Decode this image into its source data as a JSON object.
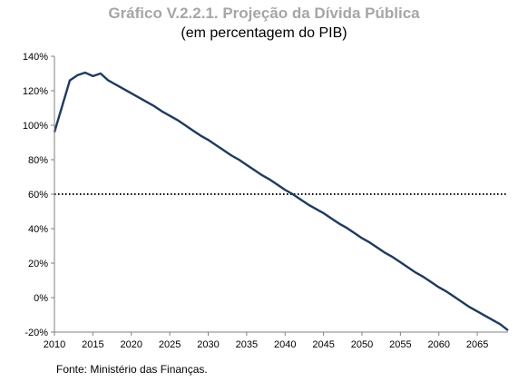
{
  "title": "Gráfico V.2.2.1. Projeção da Dívida Pública",
  "subtitle": "(em percentagem do PIB)",
  "source": "Fonte: Ministério das Finanças.",
  "chart_data": {
    "type": "line",
    "xlim": [
      2010,
      2069
    ],
    "ylim": [
      -20,
      140
    ],
    "yticks": [
      -20,
      0,
      20,
      40,
      60,
      80,
      100,
      120,
      140
    ],
    "ytick_labels": [
      "-20%",
      "0%",
      "20%",
      "40%",
      "60%",
      "80%",
      "100%",
      "120%",
      "140%"
    ],
    "xticks": [
      2010,
      2015,
      2020,
      2025,
      2030,
      2035,
      2040,
      2045,
      2050,
      2055,
      2060,
      2065
    ],
    "xtick_labels": [
      "2010",
      "2015",
      "2020",
      "2025",
      "2030",
      "2035",
      "2040",
      "2045",
      "2050",
      "2055",
      "2060",
      "2065"
    ],
    "grid": false,
    "reference_line": {
      "y": 60,
      "style": "dotted",
      "color": "#000000"
    },
    "series": [
      {
        "color": "#1f3a5f",
        "x": [
          2010,
          2011,
          2012,
          2013,
          2014,
          2015,
          2016,
          2017,
          2018,
          2019,
          2020,
          2021,
          2022,
          2023,
          2024,
          2025,
          2026,
          2027,
          2028,
          2029,
          2030,
          2031,
          2032,
          2033,
          2034,
          2035,
          2036,
          2037,
          2038,
          2039,
          2040,
          2041,
          2042,
          2043,
          2044,
          2045,
          2046,
          2047,
          2048,
          2049,
          2050,
          2051,
          2052,
          2053,
          2054,
          2055,
          2056,
          2057,
          2058,
          2059,
          2060,
          2061,
          2062,
          2063,
          2064,
          2065,
          2066,
          2067,
          2068,
          2069
        ],
        "values": [
          96,
          111,
          126,
          129,
          130.5,
          128.5,
          130,
          126,
          123.5,
          121,
          118.5,
          116,
          113.5,
          111,
          108,
          105.5,
          103,
          100,
          97,
          94,
          91.5,
          88.5,
          85.5,
          82.5,
          80,
          77,
          74,
          71,
          68.5,
          65.5,
          62.5,
          60,
          57,
          54,
          51.5,
          49,
          46,
          43,
          40.5,
          37.5,
          34.5,
          32,
          29,
          26,
          23.5,
          20.5,
          17.5,
          14.5,
          12,
          9,
          6,
          3.5,
          0.5,
          -2.5,
          -5.5,
          -8,
          -10.5,
          -13,
          -15.5,
          -19
        ]
      }
    ]
  }
}
